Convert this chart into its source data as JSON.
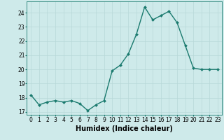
{
  "title": "",
  "xlabel": "Humidex (Indice chaleur)",
  "ylabel": "",
  "x": [
    0,
    1,
    2,
    3,
    4,
    5,
    6,
    7,
    8,
    9,
    10,
    11,
    12,
    13,
    14,
    15,
    16,
    17,
    18,
    19,
    20,
    21,
    22,
    23
  ],
  "y": [
    18.2,
    17.5,
    17.7,
    17.8,
    17.7,
    17.8,
    17.6,
    17.1,
    17.5,
    17.8,
    19.9,
    20.3,
    21.1,
    22.5,
    24.4,
    23.5,
    23.8,
    24.1,
    23.3,
    21.7,
    20.1,
    20.0,
    20.0,
    20.0
  ],
  "line_color": "#1a7a6e",
  "marker": "D",
  "marker_size": 2.0,
  "line_width": 1.0,
  "bg_color": "#ceeaea",
  "grid_color": "#b8d8d8",
  "xlim": [
    -0.5,
    23.5
  ],
  "ylim": [
    16.8,
    24.8
  ],
  "yticks": [
    17,
    18,
    19,
    20,
    21,
    22,
    23,
    24
  ],
  "xticks": [
    0,
    1,
    2,
    3,
    4,
    5,
    6,
    7,
    8,
    9,
    10,
    11,
    12,
    13,
    14,
    15,
    16,
    17,
    18,
    19,
    20,
    21,
    22,
    23
  ],
  "tick_fontsize": 5.5,
  "xlabel_fontsize": 7.0,
  "spine_color": "#1a7a6e"
}
